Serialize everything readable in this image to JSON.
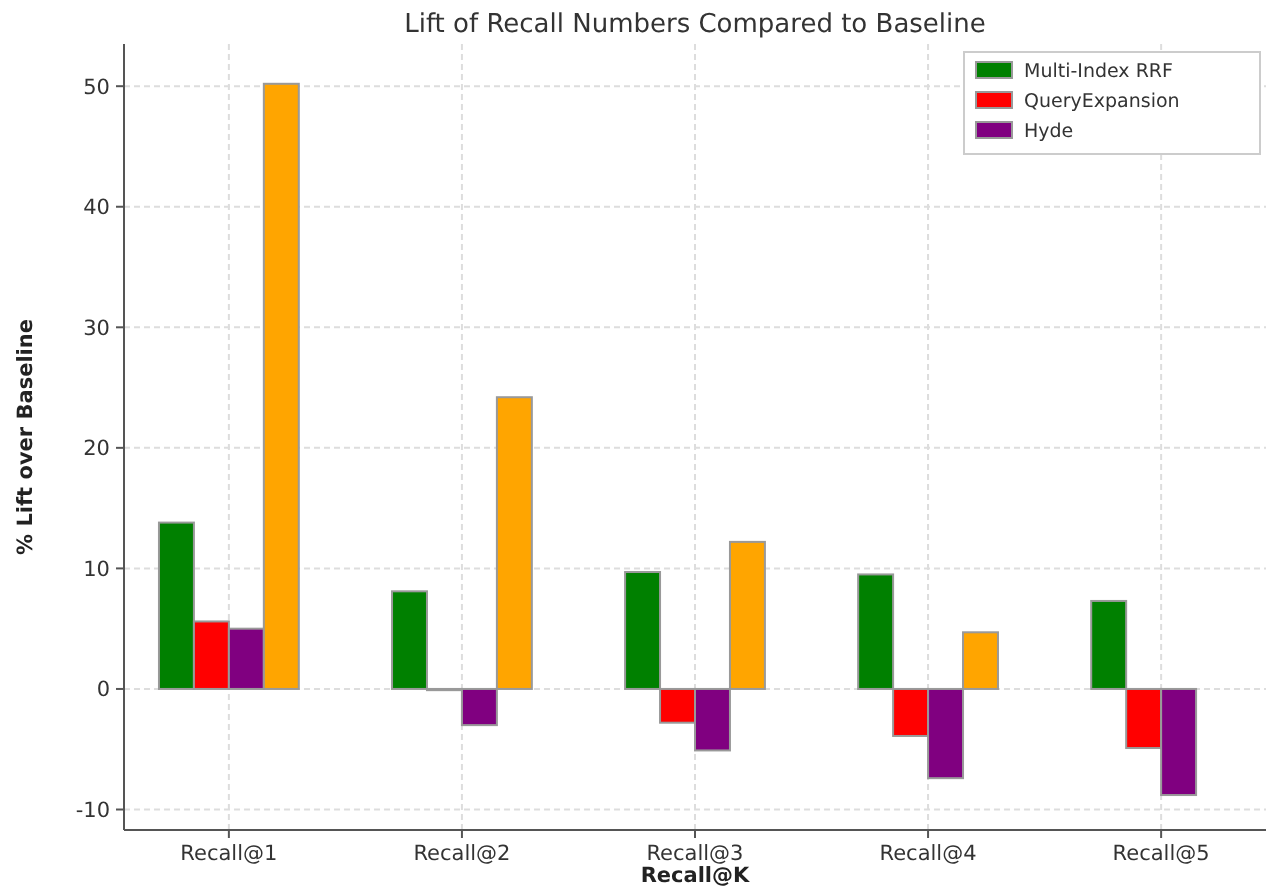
{
  "chart_data": {
    "type": "bar",
    "title": "Lift of Recall Numbers Compared to Baseline",
    "xlabel": "Recall@K",
    "ylabel": "% Lift over Baseline",
    "categories": [
      "Recall@1",
      "Recall@2",
      "Recall@3",
      "Recall@4",
      "Recall@5"
    ],
    "series": [
      {
        "name": "Multi-Index RRF",
        "color": "#008000",
        "values": [
          13.8,
          8.1,
          9.7,
          9.5,
          7.3
        ]
      },
      {
        "name": "QueryExpansion",
        "color": "#ff0000",
        "values": [
          5.6,
          -0.1,
          -2.8,
          -3.9,
          -4.9
        ]
      },
      {
        "name": "Hyde",
        "color": "#800080",
        "values": [
          5.0,
          -3.0,
          -5.1,
          -7.4,
          -8.8
        ]
      },
      {
        "color": "#ffa500",
        "values": [
          50.2,
          24.2,
          12.2,
          4.7,
          0
        ]
      }
    ],
    "ylim": [
      -11.7,
      53.5
    ],
    "yticks": [
      -10,
      0,
      10,
      20,
      30,
      40,
      50
    ],
    "grid": true,
    "legend": "top right"
  }
}
